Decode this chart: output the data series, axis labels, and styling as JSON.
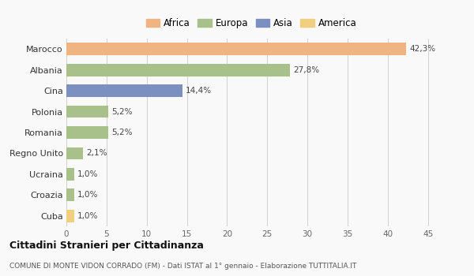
{
  "categories": [
    "Marocco",
    "Albania",
    "Cina",
    "Polonia",
    "Romania",
    "Regno Unito",
    "Ucraina",
    "Croazia",
    "Cuba"
  ],
  "values": [
    42.3,
    27.8,
    14.4,
    5.2,
    5.2,
    2.1,
    1.0,
    1.0,
    1.0
  ],
  "labels": [
    "42,3%",
    "27,8%",
    "14,4%",
    "5,2%",
    "5,2%",
    "2,1%",
    "1,0%",
    "1,0%",
    "1,0%"
  ],
  "colors": [
    "#F0B482",
    "#A8C08A",
    "#7B8FC0",
    "#A8C08A",
    "#A8C08A",
    "#A8C08A",
    "#A8C08A",
    "#A8C08A",
    "#F0D080"
  ],
  "legend": [
    {
      "label": "Africa",
      "color": "#F0B482"
    },
    {
      "label": "Europa",
      "color": "#A8C08A"
    },
    {
      "label": "Asia",
      "color": "#7B8FC0"
    },
    {
      "label": "America",
      "color": "#F0D080"
    }
  ],
  "xlim": [
    0,
    46
  ],
  "xticks": [
    0,
    5,
    10,
    15,
    20,
    25,
    30,
    35,
    40,
    45
  ],
  "title": "Cittadini Stranieri per Cittadinanza",
  "subtitle": "COMUNE DI MONTE VIDON CORRADO (FM) - Dati ISTAT al 1° gennaio - Elaborazione TUTTITALIA.IT",
  "background_color": "#f9f9f9",
  "grid_color": "#d0d0d0",
  "bar_height": 0.6
}
